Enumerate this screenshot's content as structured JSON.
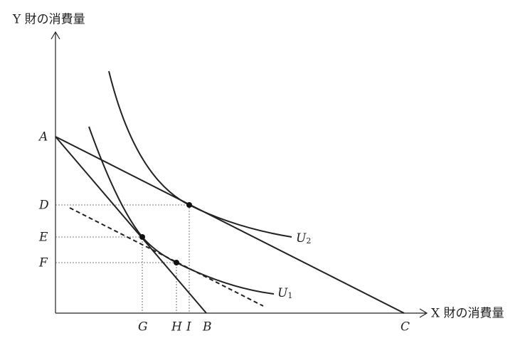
{
  "axes": {
    "y_label": "Y 財の消費量",
    "x_label": "X 財の消費量"
  },
  "points": {
    "A": "A",
    "B": "B",
    "C": "C",
    "D": "D",
    "E": "E",
    "F": "F",
    "G": "G",
    "H": "H",
    "I": "I"
  },
  "curves": {
    "U2": {
      "base": "U",
      "sub": "2"
    },
    "U1": {
      "base": "U",
      "sub": "1"
    }
  }
}
